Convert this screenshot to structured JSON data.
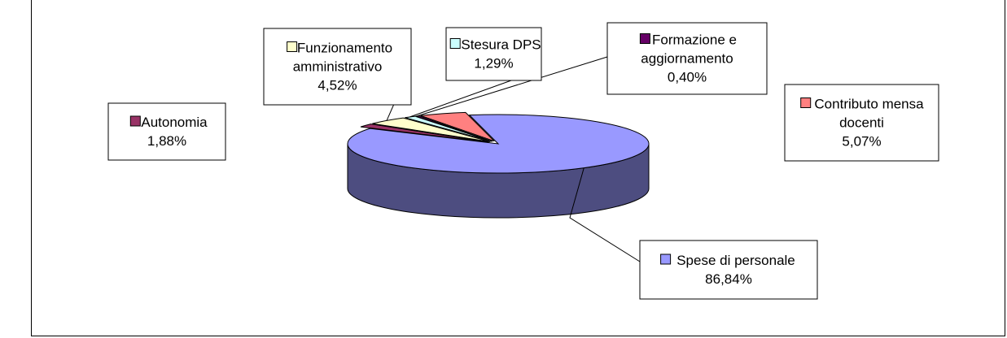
{
  "chart_data": {
    "type": "pie",
    "style": "3d-exploded",
    "slices": [
      {
        "label_lines": [
          "Spese di personale"
        ],
        "value": 86.84,
        "value_text": "86,84%",
        "color": "#9999ff",
        "side_color": "#4d4d80"
      },
      {
        "label_lines": [
          "Autonomia"
        ],
        "value": 1.88,
        "value_text": "1,88%",
        "color": "#993366",
        "side_color": "#4d1a33"
      },
      {
        "label_lines": [
          "Funzionamento",
          "amministrativo"
        ],
        "value": 4.52,
        "value_text": "4,52%",
        "color": "#ffffcc",
        "side_color": "#808066"
      },
      {
        "label_lines": [
          "Stesura DPS"
        ],
        "value": 1.29,
        "value_text": "1,29%",
        "color": "#ccffff",
        "side_color": "#668080"
      },
      {
        "label_lines": [
          "Formazione e",
          "aggiornamento"
        ],
        "value": 0.4,
        "value_text": "0,40%",
        "color": "#660066",
        "side_color": "#330033"
      },
      {
        "label_lines": [
          "Contributo mensa",
          "docenti"
        ],
        "value": 5.07,
        "value_text": "5,07%",
        "color": "#ff8080",
        "side_color": "#804040"
      }
    ],
    "legend": "none",
    "data_labels": "category-and-percent"
  }
}
